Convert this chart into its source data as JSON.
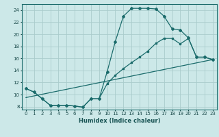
{
  "title": "",
  "xlabel": "Humidex (Indice chaleur)",
  "bg_color": "#cce8e8",
  "line_color": "#1a6b6b",
  "grid_color": "#aacccc",
  "xlim": [
    -0.5,
    23.5
  ],
  "ylim": [
    7.5,
    25.0
  ],
  "yticks": [
    8,
    10,
    12,
    14,
    16,
    18,
    20,
    22,
    24
  ],
  "xticks": [
    0,
    1,
    2,
    3,
    4,
    5,
    6,
    7,
    8,
    9,
    10,
    11,
    12,
    13,
    14,
    15,
    16,
    17,
    18,
    19,
    20,
    21,
    22,
    23
  ],
  "line1_x": [
    0,
    1,
    2,
    3,
    4,
    5,
    6,
    7,
    8,
    9,
    10,
    11,
    12,
    13,
    14,
    15,
    16,
    17,
    18,
    19,
    20,
    21,
    22,
    23
  ],
  "line1_y": [
    11.0,
    10.4,
    9.3,
    8.2,
    8.2,
    8.2,
    8.1,
    7.9,
    9.3,
    9.3,
    13.8,
    18.8,
    23.0,
    24.3,
    24.3,
    24.3,
    24.2,
    23.0,
    20.9,
    20.7,
    19.4,
    16.2,
    16.2,
    15.8
  ],
  "line2_x": [
    0,
    1,
    2,
    3,
    4,
    5,
    6,
    7,
    8,
    9,
    10,
    11,
    12,
    13,
    14,
    15,
    16,
    17,
    18,
    19,
    20,
    21,
    22,
    23
  ],
  "line2_y": [
    11.0,
    10.4,
    9.3,
    8.2,
    8.2,
    8.2,
    8.1,
    7.9,
    9.3,
    9.3,
    11.8,
    13.2,
    14.3,
    15.3,
    16.2,
    17.2,
    18.5,
    19.3,
    19.3,
    18.4,
    19.3,
    16.2,
    16.2,
    15.8
  ],
  "line3_x": [
    0,
    23
  ],
  "line3_y": [
    9.5,
    15.8
  ]
}
